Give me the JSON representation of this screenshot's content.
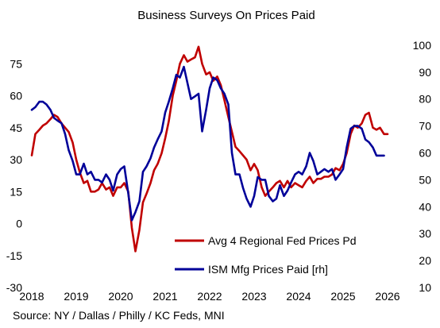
{
  "chart_data": {
    "type": "line",
    "title": "Business Surveys On Prices Paid",
    "source": "Source: NY / Dallas / Philly / KC Feds, MNI",
    "x_range": [
      2018.0,
      2026.0
    ],
    "x_ticks": [
      "2018",
      "2019",
      "2020",
      "2021",
      "2022",
      "2023",
      "2024",
      "2025",
      "2026"
    ],
    "y_left": {
      "range": [
        -30,
        90
      ],
      "ticks": [
        "75",
        "60",
        "45",
        "30",
        "15",
        "0",
        "-15",
        "-30"
      ]
    },
    "y_right": {
      "range": [
        10,
        105
      ],
      "ticks": [
        "100",
        "90",
        "80",
        "70",
        "60",
        "50",
        "40",
        "30",
        "20",
        "10"
      ]
    },
    "grid": false,
    "legend_position": "bottom-right",
    "series": [
      {
        "name": "Avg 4 Regional Fed Prices Pd",
        "axis": "left",
        "color": "#C00000",
        "points": [
          [
            2018.0,
            32
          ],
          [
            2018.08,
            42
          ],
          [
            2018.17,
            44
          ],
          [
            2018.25,
            46
          ],
          [
            2018.33,
            47
          ],
          [
            2018.42,
            49
          ],
          [
            2018.5,
            51
          ],
          [
            2018.58,
            50
          ],
          [
            2018.67,
            47
          ],
          [
            2018.75,
            45
          ],
          [
            2018.83,
            43
          ],
          [
            2018.92,
            38
          ],
          [
            2019.0,
            30
          ],
          [
            2019.08,
            24
          ],
          [
            2019.17,
            19
          ],
          [
            2019.25,
            20
          ],
          [
            2019.33,
            15
          ],
          [
            2019.42,
            15
          ],
          [
            2019.5,
            16
          ],
          [
            2019.58,
            19
          ],
          [
            2019.67,
            16
          ],
          [
            2019.75,
            17
          ],
          [
            2019.83,
            13
          ],
          [
            2019.92,
            17
          ],
          [
            2020.0,
            17
          ],
          [
            2020.08,
            19
          ],
          [
            2020.17,
            15
          ],
          [
            2020.25,
            -2
          ],
          [
            2020.33,
            -13
          ],
          [
            2020.42,
            -3
          ],
          [
            2020.5,
            10
          ],
          [
            2020.58,
            14
          ],
          [
            2020.67,
            19
          ],
          [
            2020.75,
            25
          ],
          [
            2020.83,
            28
          ],
          [
            2020.92,
            33
          ],
          [
            2021.0,
            40
          ],
          [
            2021.08,
            48
          ],
          [
            2021.17,
            60
          ],
          [
            2021.25,
            67
          ],
          [
            2021.33,
            75
          ],
          [
            2021.42,
            79
          ],
          [
            2021.5,
            76
          ],
          [
            2021.58,
            77
          ],
          [
            2021.67,
            78
          ],
          [
            2021.75,
            83
          ],
          [
            2021.83,
            75
          ],
          [
            2021.92,
            70
          ],
          [
            2022.0,
            71
          ],
          [
            2022.08,
            67
          ],
          [
            2022.17,
            69
          ],
          [
            2022.25,
            65
          ],
          [
            2022.33,
            58
          ],
          [
            2022.42,
            50
          ],
          [
            2022.5,
            43
          ],
          [
            2022.58,
            36
          ],
          [
            2022.67,
            34
          ],
          [
            2022.75,
            32
          ],
          [
            2022.83,
            30
          ],
          [
            2022.92,
            25
          ],
          [
            2023.0,
            28
          ],
          [
            2023.08,
            25
          ],
          [
            2023.17,
            17
          ],
          [
            2023.25,
            13
          ],
          [
            2023.33,
            15
          ],
          [
            2023.42,
            17
          ],
          [
            2023.5,
            19
          ],
          [
            2023.58,
            20
          ],
          [
            2023.67,
            17
          ],
          [
            2023.75,
            20
          ],
          [
            2023.83,
            17
          ],
          [
            2023.92,
            19
          ],
          [
            2024.0,
            18
          ],
          [
            2024.08,
            17
          ],
          [
            2024.17,
            20
          ],
          [
            2024.25,
            22
          ],
          [
            2024.33,
            19
          ],
          [
            2024.42,
            21
          ],
          [
            2024.5,
            21
          ],
          [
            2024.58,
            22
          ],
          [
            2024.67,
            22
          ],
          [
            2024.75,
            23
          ],
          [
            2024.83,
            26
          ],
          [
            2024.92,
            25
          ],
          [
            2025.0,
            28
          ],
          [
            2025.08,
            33
          ],
          [
            2025.17,
            42
          ],
          [
            2025.25,
            46
          ],
          [
            2025.33,
            45
          ],
          [
            2025.42,
            47
          ],
          [
            2025.5,
            51
          ],
          [
            2025.58,
            52
          ],
          [
            2025.67,
            45
          ],
          [
            2025.75,
            44
          ],
          [
            2025.83,
            45
          ],
          [
            2025.92,
            42
          ],
          [
            2026.0,
            42
          ]
        ]
      },
      {
        "name": "ISM Mfg Prices Paid [rh]",
        "axis": "right",
        "color": "#000099",
        "points": [
          [
            2018.0,
            76
          ],
          [
            2018.08,
            77
          ],
          [
            2018.17,
            79
          ],
          [
            2018.25,
            79
          ],
          [
            2018.33,
            78
          ],
          [
            2018.42,
            76
          ],
          [
            2018.5,
            73
          ],
          [
            2018.58,
            72
          ],
          [
            2018.67,
            71
          ],
          [
            2018.75,
            67
          ],
          [
            2018.83,
            61
          ],
          [
            2018.92,
            57
          ],
          [
            2019.0,
            52
          ],
          [
            2019.08,
            52
          ],
          [
            2019.17,
            56
          ],
          [
            2019.25,
            52
          ],
          [
            2019.33,
            53
          ],
          [
            2019.42,
            50
          ],
          [
            2019.5,
            50
          ],
          [
            2019.58,
            49
          ],
          [
            2019.67,
            52
          ],
          [
            2019.75,
            50
          ],
          [
            2019.83,
            46
          ],
          [
            2019.92,
            52
          ],
          [
            2020.0,
            54
          ],
          [
            2020.08,
            55
          ],
          [
            2020.17,
            45
          ],
          [
            2020.25,
            35
          ],
          [
            2020.33,
            38
          ],
          [
            2020.42,
            42
          ],
          [
            2020.5,
            53
          ],
          [
            2020.58,
            55
          ],
          [
            2020.67,
            58
          ],
          [
            2020.75,
            62
          ],
          [
            2020.83,
            65
          ],
          [
            2020.92,
            68
          ],
          [
            2021.0,
            75
          ],
          [
            2021.08,
            79
          ],
          [
            2021.17,
            84
          ],
          [
            2021.25,
            89
          ],
          [
            2021.33,
            88
          ],
          [
            2021.42,
            92
          ],
          [
            2021.5,
            86
          ],
          [
            2021.58,
            80
          ],
          [
            2021.67,
            81
          ],
          [
            2021.75,
            82
          ],
          [
            2021.83,
            68
          ],
          [
            2021.92,
            76
          ],
          [
            2022.0,
            84
          ],
          [
            2022.08,
            88
          ],
          [
            2022.17,
            87
          ],
          [
            2022.25,
            84
          ],
          [
            2022.33,
            82
          ],
          [
            2022.42,
            78
          ],
          [
            2022.5,
            60
          ],
          [
            2022.58,
            52
          ],
          [
            2022.67,
            52
          ],
          [
            2022.75,
            47
          ],
          [
            2022.83,
            43
          ],
          [
            2022.92,
            40
          ],
          [
            2023.0,
            44
          ],
          [
            2023.08,
            51
          ],
          [
            2023.17,
            50
          ],
          [
            2023.25,
            50
          ],
          [
            2023.33,
            44
          ],
          [
            2023.42,
            42
          ],
          [
            2023.5,
            43
          ],
          [
            2023.58,
            48
          ],
          [
            2023.67,
            44
          ],
          [
            2023.75,
            46
          ],
          [
            2023.83,
            49
          ],
          [
            2023.92,
            52
          ],
          [
            2024.0,
            53
          ],
          [
            2024.08,
            52
          ],
          [
            2024.17,
            55
          ],
          [
            2024.25,
            60
          ],
          [
            2024.33,
            57
          ],
          [
            2024.42,
            52
          ],
          [
            2024.5,
            53
          ],
          [
            2024.58,
            54
          ],
          [
            2024.67,
            53
          ],
          [
            2024.75,
            54
          ],
          [
            2024.83,
            50
          ],
          [
            2024.92,
            52
          ],
          [
            2025.0,
            54
          ],
          [
            2025.08,
            62
          ],
          [
            2025.17,
            69
          ],
          [
            2025.25,
            70
          ],
          [
            2025.33,
            70
          ],
          [
            2025.42,
            69
          ],
          [
            2025.5,
            65
          ],
          [
            2025.58,
            64
          ],
          [
            2025.67,
            62
          ],
          [
            2025.75,
            59
          ],
          [
            2025.83,
            59
          ],
          [
            2025.92,
            59
          ]
        ]
      }
    ]
  }
}
